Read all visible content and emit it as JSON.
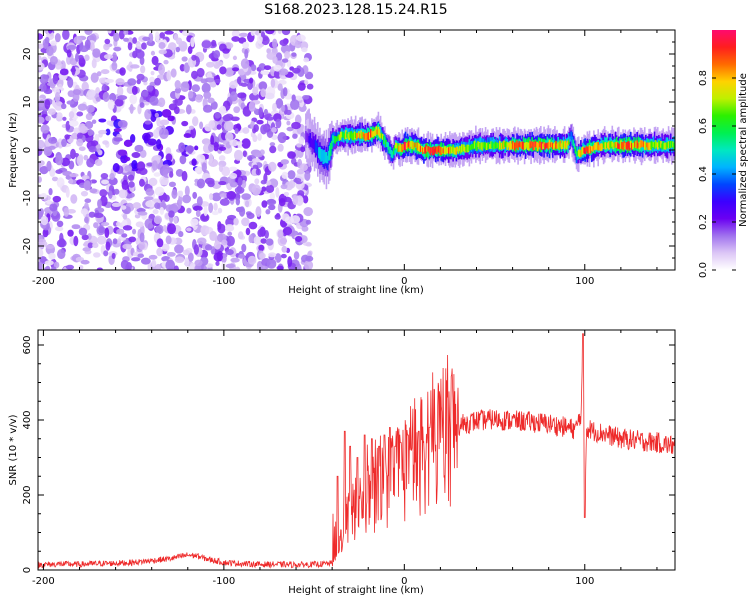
{
  "title": "S168.2023.128.15.24.R15",
  "chart_data": [
    {
      "type": "heatmap",
      "xlabel": "Height of straight line (km)",
      "ylabel": "Frequency (Hz)",
      "xlim": [
        -203,
        150
      ],
      "ylim": [
        -25,
        25
      ],
      "xticks": [
        -200,
        -100,
        0,
        100
      ],
      "yticks": [
        -20,
        -10,
        0,
        10,
        20
      ],
      "xtick_labels": [
        "-200",
        "-100",
        "0",
        "100"
      ],
      "ytick_labels": [
        "-20",
        "-10",
        "0",
        "10",
        "20"
      ],
      "colorbar": {
        "label": "Normalized spectral amplitude",
        "range": [
          0,
          1
        ],
        "ticks": [
          0.0,
          0.2,
          0.4,
          0.6,
          0.8
        ],
        "tick_labels": [
          "0.0",
          "0.2",
          "0.4",
          "0.6",
          "0.8"
        ],
        "colormap": [
          "#ffffff",
          "#dcc6f6",
          "#a072ee",
          "#6a00f2",
          "#3b00ff",
          "#0046ff",
          "#00b4ff",
          "#00e8c0",
          "#00f050",
          "#2cf000",
          "#bff000",
          "#ffd200",
          "#ff6a00",
          "#ff1e1e",
          "#ff0a6e"
        ]
      },
      "noise_region": {
        "x_range": [
          -203,
          -52
        ],
        "freq_range": [
          -25,
          25
        ],
        "typical_amplitude": 0.1
      },
      "signal_track": {
        "description_points_x_km": [
          -55,
          -50,
          -47,
          -43,
          -40,
          -35,
          -30,
          -25,
          -20,
          -15,
          -10,
          -7,
          -5,
          -2,
          0,
          5,
          10,
          20,
          30,
          40,
          50,
          60,
          70,
          80,
          90,
          92,
          95,
          100,
          110,
          120,
          130,
          140,
          150
        ],
        "frequency_hz": [
          3,
          1,
          -1,
          -2,
          2,
          3,
          3,
          3,
          3,
          4,
          1,
          -1,
          1,
          0,
          1,
          1,
          0,
          0,
          0,
          1,
          1,
          1,
          1,
          1,
          1,
          3,
          -1,
          0,
          1,
          1,
          1,
          1,
          1
        ],
        "amplitude": [
          0.2,
          0.3,
          0.45,
          0.5,
          0.55,
          0.65,
          0.7,
          0.75,
          0.8,
          0.85,
          0.5,
          0.55,
          0.65,
          0.85,
          0.9,
          0.8,
          0.85,
          0.85,
          0.7,
          0.65,
          0.65,
          0.8,
          0.85,
          0.85,
          0.75,
          0.4,
          0.6,
          0.9,
          0.7,
          0.85,
          0.8,
          0.7,
          0.7
        ]
      }
    },
    {
      "type": "line",
      "xlabel": "Height of straight line (km)",
      "ylabel": "SNR (10 * v/v)",
      "xlim": [
        -203,
        150
      ],
      "ylim": [
        0,
        640
      ],
      "xticks": [
        -200,
        -100,
        0,
        100
      ],
      "yticks": [
        0,
        200,
        400,
        600
      ],
      "xtick_labels": [
        "-200",
        "-100",
        "0",
        "100"
      ],
      "ytick_labels": [
        "0",
        "200",
        "400",
        "600"
      ],
      "color": "#ee2a2a",
      "x": [
        -203,
        -190,
        -180,
        -170,
        -160,
        -150,
        -140,
        -130,
        -125,
        -120,
        -115,
        -110,
        -105,
        -100,
        -90,
        -80,
        -70,
        -60,
        -50,
        -45,
        -40,
        -37,
        -35,
        -30,
        -25,
        -20,
        -15,
        -10,
        -5,
        0,
        5,
        10,
        15,
        20,
        25,
        30,
        35,
        40,
        50,
        60,
        70,
        80,
        90,
        95,
        98,
        99,
        100,
        101,
        105,
        110,
        120,
        130,
        140,
        150
      ],
      "y": [
        14,
        16,
        15,
        17,
        18,
        20,
        25,
        30,
        35,
        40,
        38,
        30,
        25,
        20,
        17,
        15,
        15,
        14,
        15,
        16,
        18,
        30,
        90,
        150,
        180,
        200,
        220,
        230,
        250,
        270,
        300,
        320,
        340,
        360,
        375,
        385,
        392,
        398,
        402,
        398,
        395,
        390,
        380,
        375,
        420,
        600,
        160,
        380,
        370,
        365,
        350,
        345,
        340,
        330
      ],
      "spikes": [
        {
          "x": -37,
          "y": 250
        },
        {
          "x": -33,
          "y": 370
        },
        {
          "x": -30,
          "y": 330
        },
        {
          "x": -26,
          "y": 300
        },
        {
          "x": -22,
          "y": 360
        },
        {
          "x": -18,
          "y": 350
        },
        {
          "x": -14,
          "y": 330
        },
        {
          "x": -11,
          "y": 360
        },
        {
          "x": -8,
          "y": 380
        },
        {
          "x": -5,
          "y": 330
        },
        {
          "x": -2,
          "y": 340
        },
        {
          "x": 2,
          "y": 360
        },
        {
          "x": 8,
          "y": 370
        },
        {
          "x": 14,
          "y": 380
        },
        {
          "x": 99,
          "y": 630
        },
        {
          "x": 100,
          "y": 140
        }
      ]
    }
  ]
}
